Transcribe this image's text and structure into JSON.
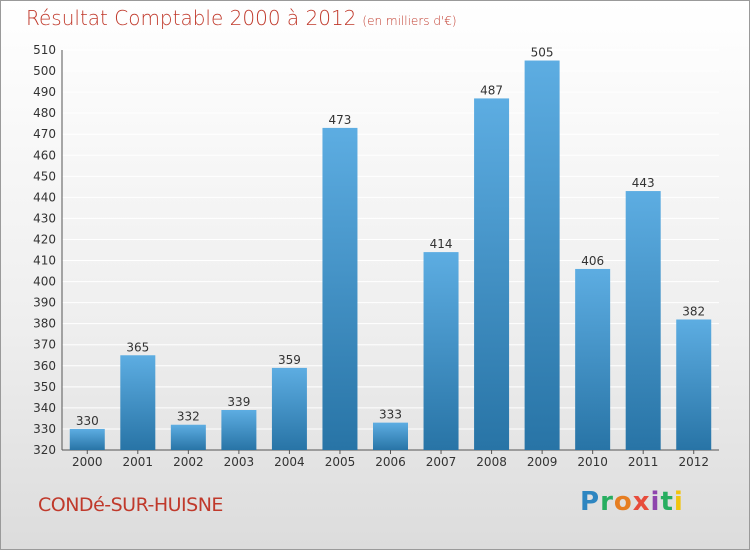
{
  "header": {
    "title": "Résultat Comptable 2000 à 2012",
    "subtitle": "(en milliers d'€)"
  },
  "footer": {
    "commune": "CONDé-SUR-HUISNE",
    "logo": [
      "P",
      "r",
      "o",
      "x",
      "i",
      "t",
      "i"
    ],
    "logo_colors": [
      "#2e86c1",
      "#27ae60",
      "#e67e22",
      "#e74c3c",
      "#8e44ad",
      "#27ae60",
      "#f1c40f"
    ]
  },
  "colors": {
    "bar_light": "#5dade2",
    "bar_dark": "#2874a6",
    "grid": "#ffffff",
    "axis_text": "#333333",
    "title": "#c0392b"
  },
  "chart_data": {
    "type": "bar",
    "title": "Résultat Comptable 2000 à 2012",
    "ylabel": "en milliers d'€",
    "categories": [
      "2000",
      "2001",
      "2002",
      "2003",
      "2004",
      "2005",
      "2006",
      "2007",
      "2008",
      "2009",
      "2010",
      "2011",
      "2012"
    ],
    "values": [
      330,
      365,
      332,
      339,
      359,
      473,
      333,
      414,
      487,
      505,
      406,
      443,
      382
    ],
    "ylim": [
      320,
      510
    ],
    "ytick_step": 10,
    "grid": true
  }
}
